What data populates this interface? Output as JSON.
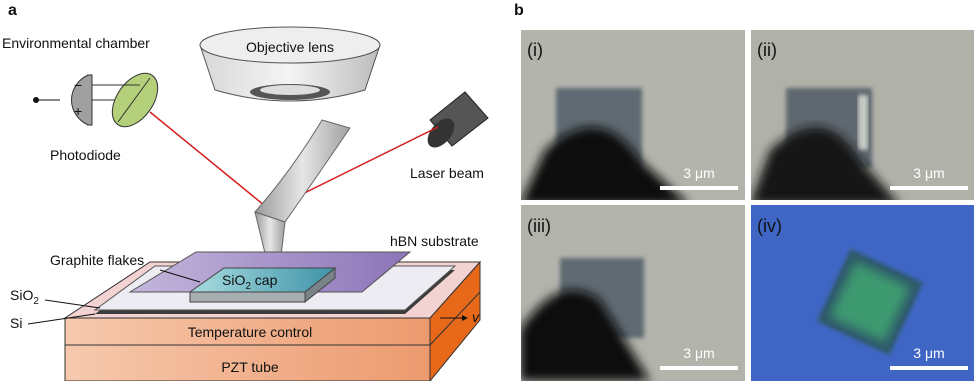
{
  "panel_a": {
    "label": "a",
    "environmental_chamber": "Environmental chamber",
    "objective_lens": "Objective lens",
    "photodiode": "Photodiode",
    "minus": "−",
    "plus": "+",
    "laser_beam": "Laser beam",
    "hbn_substrate": "hBN substrate",
    "graphite_flakes": "Graphite flakes",
    "sio2_cap": {
      "main": "SiO",
      "sub": "2",
      "rest": " cap"
    },
    "sio2": {
      "main": "SiO",
      "sub": "2"
    },
    "si": "Si",
    "velocity": "v",
    "temperature_control": "Temperature control",
    "pzt_tube": "PZT tube"
  },
  "panel_b": {
    "label": "b",
    "images": [
      {
        "label": "(i)",
        "scale_bar": "3 μm"
      },
      {
        "label": "(ii)",
        "scale_bar": "3 μm"
      },
      {
        "label": "(iii)",
        "scale_bar": "3 μm"
      },
      {
        "label": "(iv)",
        "scale_bar": "3 μm"
      }
    ]
  }
}
